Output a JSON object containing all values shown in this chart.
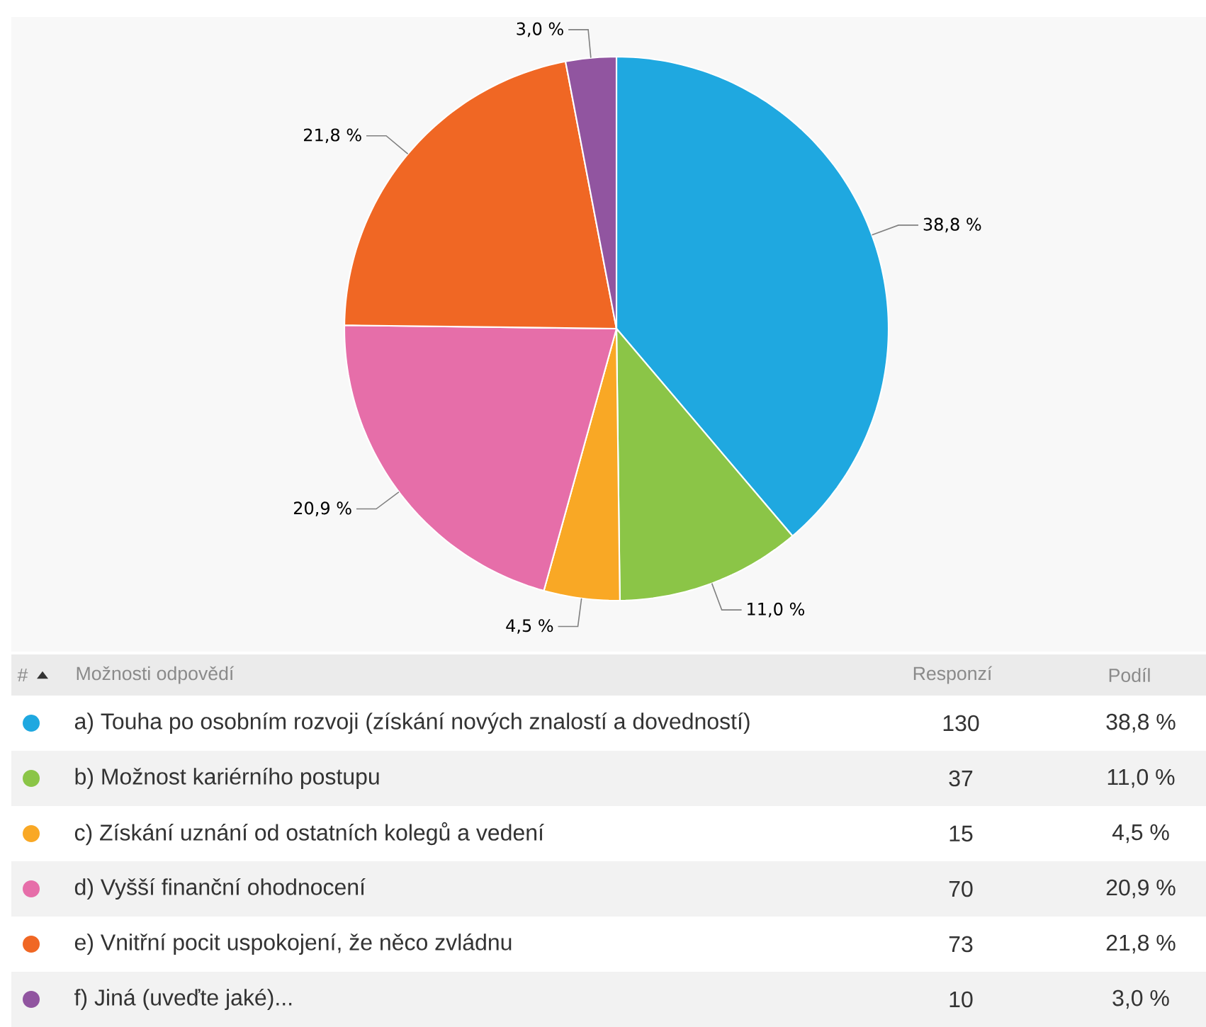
{
  "chart_data": {
    "type": "pie",
    "categories": [
      "a) Touha po osobním rozvoji (získání nových znalostí a dovedností)",
      "b) Možnost kariérního postupu",
      "c) Získání uznání od ostatních kolegů a vedení",
      "d) Vyšší finanční ohodnocení",
      "e) Vnitřní pocit uspokojení, že něco zvládnu",
      "f) Jiná (uveďte jaké)..."
    ],
    "values": [
      38.8,
      11.0,
      4.5,
      20.9,
      21.8,
      3.0
    ],
    "value_labels": [
      "38,8 %",
      "11,0 %",
      "4,5 %",
      "20,9 %",
      "21,8 %",
      "3,0 %"
    ],
    "colors": [
      "#1fa8e0",
      "#8bc547",
      "#f9a825",
      "#e66ea9",
      "#f06724",
      "#9155a0"
    ],
    "legend": "bottom",
    "legend_title": "Možnosti odpovědí",
    "annotations": [
      "#",
      "Responzí",
      "Podíl",
      "130",
      "37",
      "15",
      "70",
      "73",
      "10"
    ]
  }
}
